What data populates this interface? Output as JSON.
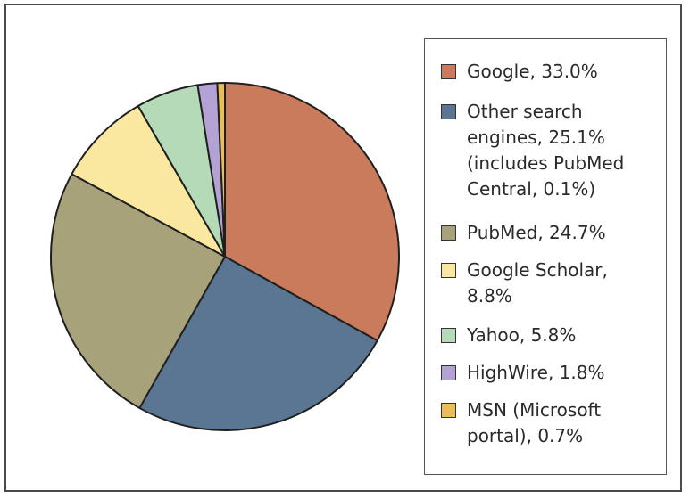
{
  "chart_data": {
    "type": "pie",
    "title": "",
    "legend_position": "right",
    "slices": [
      {
        "label": "Google, 33.0%",
        "value": 33.0,
        "color": "#c97b5c"
      },
      {
        "label": "Other search engines, 25.1% (includes PubMed Central, 0.1%)",
        "value": 25.1,
        "color": "#5a7692"
      },
      {
        "label": "PubMed, 24.7%",
        "value": 24.7,
        "color": "#a8a27b"
      },
      {
        "label": "Google Scholar, 8.8%",
        "value": 8.8,
        "color": "#fbe8a0"
      },
      {
        "label": "Yahoo, 5.8%",
        "value": 5.8,
        "color": "#b5dab8"
      },
      {
        "label": "HighWire, 1.8%",
        "value": 1.8,
        "color": "#b3a2d3"
      },
      {
        "label": "MSN (Microsoft portal), 0.7%",
        "value": 0.7,
        "color": "#e9bd57"
      }
    ]
  }
}
